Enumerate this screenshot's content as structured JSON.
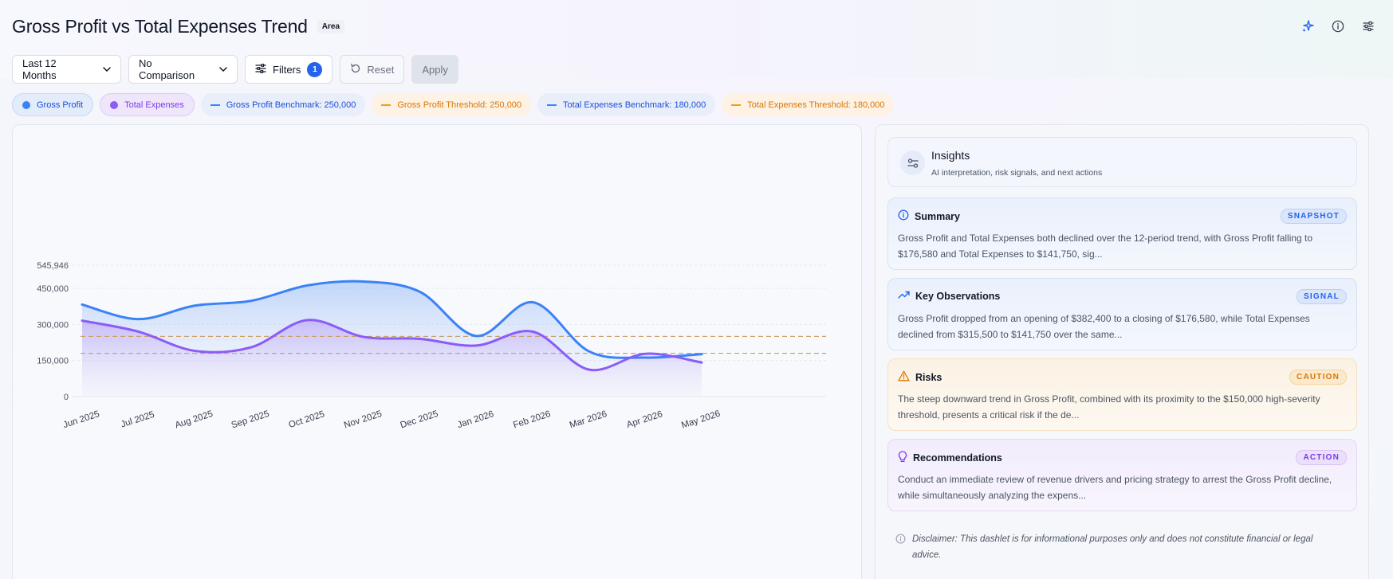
{
  "header": {
    "title": "Gross Profit vs Total Expenses Trend",
    "chart_type_badge": "Area",
    "icons": [
      "sparkle-icon",
      "info-icon",
      "sliders-icon"
    ]
  },
  "controls": {
    "period": "Last 12 Months",
    "comparison": "No Comparison",
    "filters_label": "Filters",
    "filters_count": "1",
    "reset_label": "Reset",
    "apply_label": "Apply"
  },
  "legend": {
    "gross_profit": "Gross Profit",
    "total_expenses": "Total Expenses",
    "gp_benchmark": "Gross Profit Benchmark: 250,000",
    "gp_threshold": "Gross Profit Threshold: 250,000",
    "te_benchmark": "Total Expenses Benchmark: 180,000",
    "te_threshold": "Total Expenses Threshold: 180,000"
  },
  "colors": {
    "gross_profit": "#3b82f6",
    "total_expenses": "#8b5cf6",
    "benchmark": "#3b82f6",
    "threshold": "#f59e0b"
  },
  "chart_data": {
    "type": "area",
    "categories": [
      "Jun 2025",
      "Jul 2025",
      "Aug 2025",
      "Sep 2025",
      "Oct 2025",
      "Nov 2025",
      "Dec 2025",
      "Jan 2026",
      "Feb 2026",
      "Mar 2026",
      "Apr 2026",
      "May 2026"
    ],
    "series": [
      {
        "name": "Gross Profit",
        "values": [
          382400,
          322000,
          378000,
          398000,
          462000,
          478000,
          435000,
          252000,
          392000,
          188000,
          162000,
          176580
        ]
      },
      {
        "name": "Total Expenses",
        "values": [
          315500,
          270000,
          190000,
          205000,
          318000,
          248000,
          240000,
          212000,
          270000,
          112000,
          178000,
          141750
        ]
      }
    ],
    "reference_lines": [
      {
        "label": "Gross Profit Benchmark",
        "value": 250000
      },
      {
        "label": "Gross Profit Threshold",
        "value": 250000
      },
      {
        "label": "Total Expenses Benchmark",
        "value": 180000
      },
      {
        "label": "Total Expenses Threshold",
        "value": 180000
      }
    ],
    "y_ticks": [
      "545,946",
      "450,000",
      "300,000",
      "150,000",
      "0"
    ],
    "y_tick_values": [
      545946,
      450000,
      300000,
      150000,
      0
    ],
    "ylim": [
      0,
      545946
    ],
    "grid": true
  },
  "insights": {
    "title": "Insights",
    "subtitle": "AI interpretation, risk signals, and next actions",
    "cards": [
      {
        "title": "Summary",
        "tag": "SNAPSHOT",
        "text": "Gross Profit and Total Expenses both declined over the 12-period trend, with Gross Profit falling to $176,580 and Total Expenses to $141,750, sig..."
      },
      {
        "title": "Key Observations",
        "tag": "SIGNAL",
        "text": "Gross Profit dropped from an opening of $382,400 to a closing of $176,580, while Total Expenses declined from $315,500 to $141,750 over the same..."
      },
      {
        "title": "Risks",
        "tag": "CAUTION",
        "text": "The steep downward trend in Gross Profit, combined with its proximity to the $150,000 high-severity threshold, presents a critical risk if the de..."
      },
      {
        "title": "Recommendations",
        "tag": "ACTION",
        "text": "Conduct an immediate review of revenue drivers and pricing strategy to arrest the Gross Profit decline, while simultaneously analyzing the expens..."
      }
    ],
    "disclaimer": "Disclaimer: This dashlet is for informational purposes only and does not constitute financial or legal advice."
  }
}
